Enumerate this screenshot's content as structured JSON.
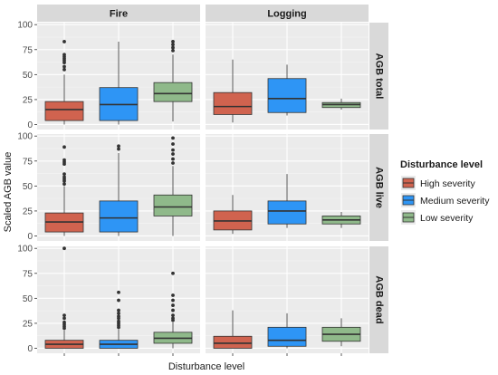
{
  "chart_data": {
    "type": "boxplot",
    "facet_columns": [
      "Fire",
      "Logging"
    ],
    "facet_rows": [
      "AGB total",
      "AGB live",
      "AGB dead"
    ],
    "xlabel": "Disturbance level",
    "ylabel": "Scaled AGB value",
    "yticks": [
      0,
      25,
      50,
      75,
      100
    ],
    "ylim": [
      -5,
      102
    ],
    "grid": true,
    "legend": {
      "title": "Disturbance level",
      "position": "right",
      "entries": [
        {
          "label": "High severity",
          "color": "#D0634F"
        },
        {
          "label": "Medium severity",
          "color": "#2E95F5"
        },
        {
          "label": "Low severity",
          "color": "#8FB98A"
        }
      ]
    },
    "panels": [
      {
        "row": "AGB total",
        "col": "Fire",
        "boxes": [
          {
            "level": "High severity",
            "min": 0,
            "q1": 4,
            "median": 15,
            "q3": 23,
            "max": 50,
            "outliers": [
              55,
              58,
              62,
              64,
              66,
              68,
              70,
              83
            ]
          },
          {
            "level": "Medium severity",
            "min": 0,
            "q1": 4,
            "median": 20,
            "q3": 37,
            "max": 83,
            "outliers": []
          },
          {
            "level": "Low severity",
            "min": 3,
            "q1": 23,
            "median": 31,
            "q3": 42,
            "max": 70,
            "outliers": [
              74,
              77,
              80,
              83
            ]
          }
        ]
      },
      {
        "row": "AGB total",
        "col": "Logging",
        "boxes": [
          {
            "level": "High severity",
            "min": 2,
            "q1": 10,
            "median": 18,
            "q3": 32,
            "max": 65,
            "outliers": []
          },
          {
            "level": "Medium severity",
            "min": 9,
            "q1": 12,
            "median": 26,
            "q3": 46,
            "max": 60,
            "outliers": []
          },
          {
            "level": "Low severity",
            "min": 15,
            "q1": 17,
            "median": 20,
            "q3": 22,
            "max": 26,
            "outliers": []
          }
        ]
      },
      {
        "row": "AGB live",
        "col": "Fire",
        "boxes": [
          {
            "level": "High severity",
            "min": 0,
            "q1": 4,
            "median": 14,
            "q3": 23,
            "max": 50,
            "outliers": [
              52,
              55,
              57,
              59,
              62,
              72,
              74,
              76,
              89
            ]
          },
          {
            "level": "Medium severity",
            "min": 0,
            "q1": 4,
            "median": 18,
            "q3": 35,
            "max": 83,
            "outliers": [
              87,
              90
            ]
          },
          {
            "level": "Low severity",
            "min": 0,
            "q1": 20,
            "median": 29,
            "q3": 41,
            "max": 70,
            "outliers": [
              73,
              77,
              82,
              86,
              92,
              98
            ]
          }
        ]
      },
      {
        "row": "AGB live",
        "col": "Logging",
        "boxes": [
          {
            "level": "High severity",
            "min": 2,
            "q1": 6,
            "median": 15,
            "q3": 25,
            "max": 41,
            "outliers": []
          },
          {
            "level": "Medium severity",
            "min": 8,
            "q1": 12,
            "median": 25,
            "q3": 35,
            "max": 62,
            "outliers": []
          },
          {
            "level": "Low severity",
            "min": 8,
            "q1": 12,
            "median": 16,
            "q3": 20,
            "max": 24,
            "outliers": []
          }
        ]
      },
      {
        "row": "AGB dead",
        "col": "Fire",
        "boxes": [
          {
            "level": "High severity",
            "min": 0,
            "q1": 0,
            "median": 4,
            "q3": 8,
            "max": 18,
            "outliers": [
              20,
              22,
              24,
              26,
              30,
              33,
              100
            ]
          },
          {
            "level": "Medium severity",
            "min": 0,
            "q1": 0,
            "median": 4,
            "q3": 8,
            "max": 19,
            "outliers": [
              21,
              23,
              25,
              27,
              30,
              32,
              35,
              38,
              48,
              56
            ]
          },
          {
            "level": "Low severity",
            "min": 0,
            "q1": 5,
            "median": 10,
            "q3": 16,
            "max": 26,
            "outliers": [
              28,
              30,
              33,
              38,
              43,
              48,
              53,
              75
            ]
          }
        ]
      },
      {
        "row": "AGB dead",
        "col": "Logging",
        "boxes": [
          {
            "level": "High severity",
            "min": 0,
            "q1": 0,
            "median": 5,
            "q3": 12,
            "max": 38,
            "outliers": []
          },
          {
            "level": "Medium severity",
            "min": 0,
            "q1": 2,
            "median": 8,
            "q3": 21,
            "max": 35,
            "outliers": []
          },
          {
            "level": "Low severity",
            "min": 2,
            "q1": 7,
            "median": 14,
            "q3": 21,
            "max": 30,
            "outliers": []
          }
        ]
      }
    ]
  }
}
